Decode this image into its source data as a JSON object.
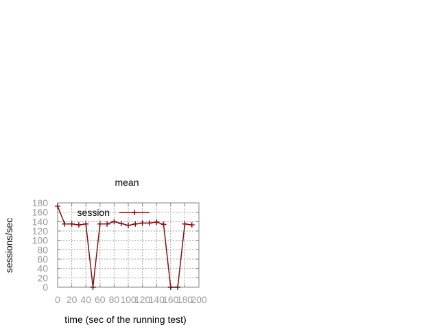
{
  "chart_data": {
    "type": "line",
    "title": "mean",
    "xlabel": "time (sec of the running test)",
    "ylabel": "sessions/sec",
    "xlim": [
      0,
      200
    ],
    "ylim": [
      0,
      180
    ],
    "xticks": [
      0,
      20,
      40,
      60,
      80,
      100,
      120,
      140,
      160,
      180,
      200
    ],
    "yticks": [
      0,
      20,
      40,
      60,
      80,
      100,
      120,
      140,
      160,
      180
    ],
    "grid": true,
    "legend_position": "top-left",
    "series_color": "#7f1010",
    "series": [
      {
        "name": "session",
        "x": [
          0,
          10,
          20,
          30,
          40,
          50,
          60,
          70,
          80,
          90,
          100,
          110,
          120,
          130,
          140,
          150,
          160,
          170,
          180,
          190
        ],
        "y": [
          173,
          135,
          135,
          133,
          135,
          0,
          135,
          135,
          140,
          136,
          132,
          135,
          137,
          137,
          139,
          134,
          0,
          0,
          135,
          133
        ]
      }
    ]
  }
}
